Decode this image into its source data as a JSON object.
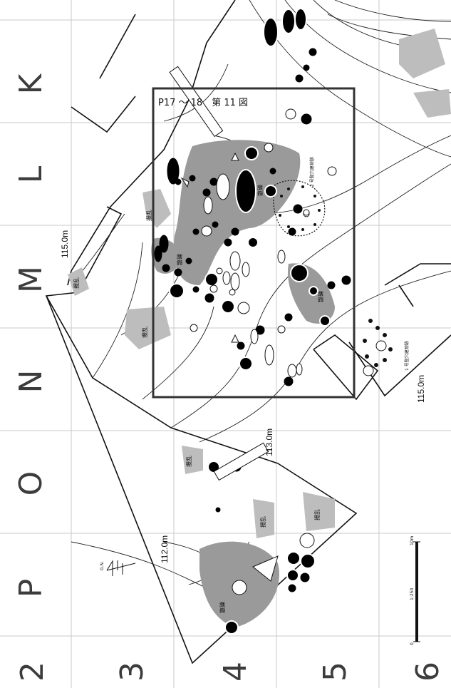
{
  "figure": {
    "frame_title": "P17 ～ 18　第 11 図",
    "column_labels": [
      "K",
      "L",
      "M",
      "N",
      "O",
      "P"
    ],
    "row_labels": [
      "2",
      "3",
      "4",
      "5",
      "6"
    ],
    "elevations": {
      "top": "115.0m",
      "bottom_right": "115.0m",
      "middle": "113.0m",
      "left": "112.0m"
    },
    "area_labels": {
      "disturbed": "攪乱",
      "scatter": "散礫",
      "dwelling_1": "1 号竪穴建物跡",
      "dwelling_2": "2 号竪穴建物跡"
    },
    "north_label": "G.N.",
    "scale": {
      "ratio": "1:250",
      "start": "0",
      "end": "10m"
    },
    "colors": {
      "grid": "#c8c8c8",
      "disturbed_fill": "#bdbdbd",
      "scatter_fill": "#9a9a9a",
      "frame": "#333333"
    }
  }
}
